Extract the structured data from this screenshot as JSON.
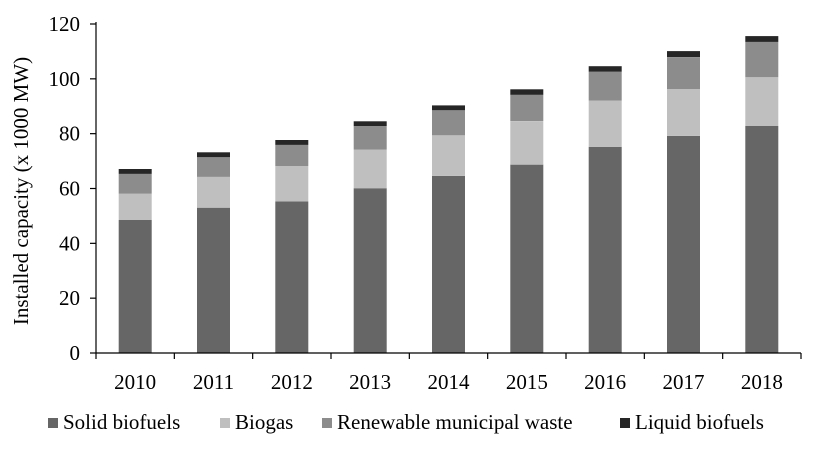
{
  "chart_data": {
    "type": "bar",
    "stacked": true,
    "categories": [
      "2010",
      "2011",
      "2012",
      "2013",
      "2014",
      "2015",
      "2016",
      "2017",
      "2018"
    ],
    "series": [
      {
        "name": "Solid biofuels",
        "color": "#666666",
        "values": [
          48.5,
          53,
          55.3,
          60.1,
          64.6,
          68.7,
          75.2,
          79.2,
          82.8
        ]
      },
      {
        "name": "Biogas",
        "color": "#bfbfbf",
        "values": [
          9.6,
          11.2,
          12.9,
          14.1,
          14.8,
          15.9,
          16.9,
          17.1,
          17.8
        ]
      },
      {
        "name": "Renewable municipal waste",
        "color": "#8c8c8c",
        "values": [
          7.2,
          7.2,
          7.7,
          8.5,
          9.1,
          9.6,
          10.5,
          11.6,
          12.9
        ]
      },
      {
        "name": "Liquid biofuels",
        "color": "#262626",
        "values": [
          1.8,
          1.8,
          1.8,
          1.8,
          1.8,
          2.0,
          2.0,
          2.2,
          2.1
        ]
      }
    ],
    "xlabel": "",
    "ylabel": "Installed capacity (x 1000 MW)",
    "ylim": [
      0,
      120
    ],
    "yticks": [
      0,
      20,
      40,
      60,
      80,
      100,
      120
    ],
    "grid": false,
    "legend_position": "bottom"
  }
}
